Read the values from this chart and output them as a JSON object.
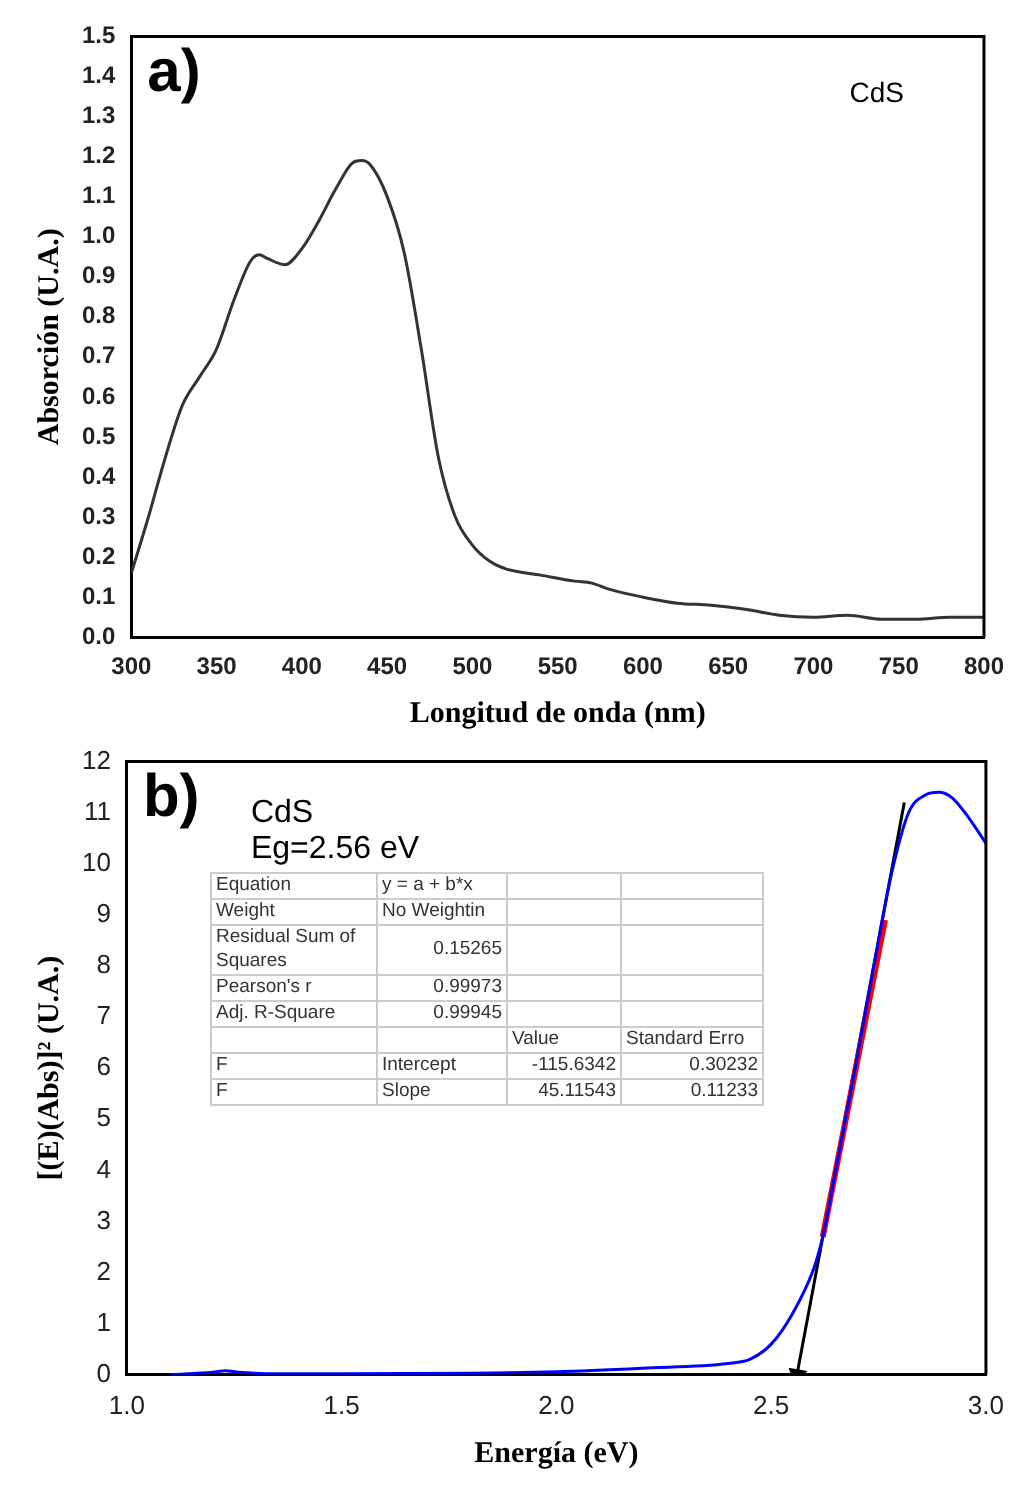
{
  "chart_data": [
    {
      "type": "line",
      "xlabel": "Longitud de onda (nm)",
      "ylabel": "Absorción (U.A.)",
      "annotations": [
        "a)",
        "CdS"
      ],
      "xlim": [
        300,
        800
      ],
      "xticks": [
        300,
        350,
        400,
        450,
        500,
        550,
        600,
        650,
        700,
        750,
        800
      ],
      "ylim": [
        0,
        1.5
      ],
      "yticks": [
        {
          "value": 0,
          "label": "0.0"
        },
        0.1,
        0.2,
        0.3,
        0.4,
        0.5,
        0.6,
        0.7,
        0.8,
        0.9,
        {
          "value": 1,
          "label": "1.0"
        },
        1.1,
        1.2,
        1.3,
        1.4,
        1.5
      ],
      "grid": false,
      "legend": false,
      "series": [
        {
          "color": "#333333",
          "x": [
            300,
            310,
            320,
            330,
            340,
            350,
            360,
            370,
            375,
            380,
            390,
            400,
            410,
            420,
            430,
            435,
            440,
            450,
            460,
            470,
            480,
            490,
            500,
            510,
            520,
            540,
            560,
            570,
            580,
            600,
            620,
            640,
            660,
            680,
            700,
            720,
            740,
            760,
            780,
            800
          ],
          "values": [
            0.16,
            0.3,
            0.45,
            0.58,
            0.65,
            0.72,
            0.84,
            0.94,
            0.955,
            0.945,
            0.93,
            0.97,
            1.04,
            1.12,
            1.185,
            1.19,
            1.18,
            1.1,
            0.96,
            0.72,
            0.45,
            0.3,
            0.23,
            0.19,
            0.17,
            0.155,
            0.14,
            0.135,
            0.12,
            0.1,
            0.085,
            0.08,
            0.07,
            0.055,
            0.05,
            0.055,
            0.045,
            0.045,
            0.05,
            0.05
          ]
        }
      ]
    },
    {
      "type": "line",
      "xlabel": "Energía (eV)",
      "ylabel": "[(E)(Abs)]² (U.A.)",
      "annotations": [
        "b)",
        "CdS",
        "Eg=2.56 eV",
        "Equation",
        "y = a + b*x",
        "Weight",
        "No Weightin",
        "Residual Sum of Squares",
        "0.15265",
        "Pearson's r",
        "0.99973",
        "Adj. R-Square",
        "0.99945",
        "Value",
        "Standard Erro",
        "F",
        "Intercept",
        "-115.6342",
        "0.30232",
        "F",
        "Slope",
        "45.11543",
        "0.11233"
      ],
      "xlim": [
        1,
        3
      ],
      "xticks": [
        {
          "value": 1,
          "label": "1.0"
        },
        1.5,
        {
          "value": 2,
          "label": "2.0"
        },
        2.5,
        {
          "value": 3,
          "label": "3.0"
        }
      ],
      "ylim": [
        0,
        12
      ],
      "yticks": [
        0,
        1,
        2,
        3,
        4,
        5,
        6,
        7,
        8,
        9,
        10,
        11,
        12
      ],
      "grid": false,
      "legend": false,
      "series": [
        {
          "color": "#0000ff",
          "x": [
            1.1,
            1.2,
            1.23,
            1.26,
            1.35,
            1.5,
            1.8,
            2.0,
            2.2,
            2.4,
            2.45,
            2.5,
            2.55,
            2.6,
            2.62,
            2.65,
            2.7,
            2.75,
            2.78,
            2.82,
            2.86,
            2.89,
            2.92,
            2.96,
            3.0
          ],
          "values": [
            0,
            0.05,
            0.08,
            0.05,
            0.02,
            0.02,
            0.03,
            0.06,
            0.13,
            0.22,
            0.3,
            0.6,
            1.2,
            2.1,
            2.7,
            4.0,
            6.2,
            8.5,
            9.8,
            11.0,
            11.35,
            11.4,
            11.3,
            10.9,
            10.4
          ]
        },
        {
          "color": "#ff0000",
          "x": [
            2.62,
            2.765
          ],
          "values": [
            2.7,
            8.9
          ]
        },
        {
          "color": "#000000",
          "marker": "triangle",
          "x": [
            2.81,
            2.56
          ],
          "values": [
            11.2,
            0
          ]
        }
      ]
    }
  ]
}
